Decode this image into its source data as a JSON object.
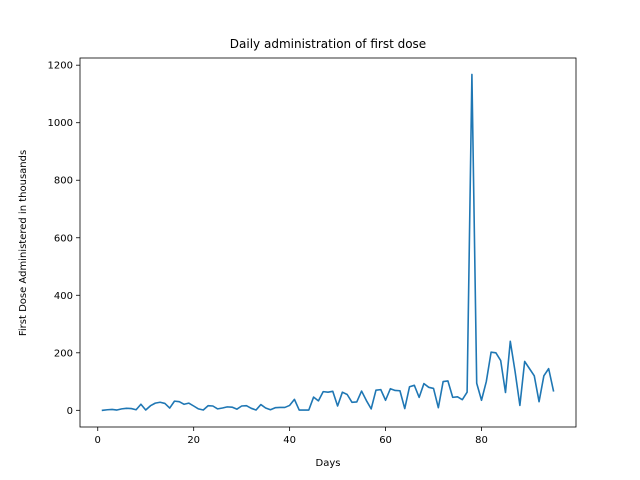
{
  "chart_data": {
    "type": "line",
    "title": "Daily administration of first dose",
    "xlabel": "Days",
    "ylabel": "First Dose Administered in thousands",
    "xlim": [
      -3.7,
      99.7
    ],
    "ylim": [
      -58,
      1225
    ],
    "xticks": [
      0,
      20,
      40,
      60,
      80
    ],
    "yticks": [
      0,
      200,
      400,
      600,
      800,
      1000,
      1200
    ],
    "grid": false,
    "legend": "none",
    "series": [
      {
        "color": "#1f77b4",
        "x": [
          1,
          2,
          3,
          4,
          5,
          6,
          7,
          8,
          9,
          10,
          11,
          12,
          13,
          14,
          15,
          16,
          17,
          18,
          19,
          20,
          21,
          22,
          23,
          24,
          25,
          26,
          27,
          28,
          29,
          30,
          31,
          32,
          33,
          34,
          35,
          36,
          37,
          38,
          39,
          40,
          41,
          42,
          43,
          44,
          45,
          46,
          47,
          48,
          49,
          50,
          51,
          52,
          53,
          54,
          55,
          56,
          57,
          58,
          59,
          60,
          61,
          62,
          63,
          64,
          65,
          66,
          67,
          68,
          69,
          70,
          71,
          72,
          73,
          74,
          75,
          76,
          77,
          78,
          79,
          80,
          81,
          82,
          83,
          84,
          85,
          86,
          87,
          88,
          89,
          90,
          91,
          92,
          93,
          94,
          95
        ],
        "values": [
          0,
          2,
          3,
          1,
          5,
          7,
          6,
          2,
          21,
          1,
          16,
          25,
          28,
          24,
          8,
          32,
          30,
          21,
          25,
          15,
          5,
          1,
          16,
          15,
          5,
          8,
          12,
          11,
          4,
          15,
          16,
          7,
          1,
          20,
          8,
          2,
          9,
          10,
          10,
          17,
          38,
          1,
          1,
          1,
          46,
          33,
          65,
          63,
          66,
          15,
          63,
          55,
          28,
          29,
          67,
          34,
          5,
          70,
          72,
          35,
          75,
          69,
          68,
          6,
          82,
          87,
          45,
          93,
          80,
          76,
          9,
          100,
          102,
          45,
          47,
          37,
          63,
          1168,
          94,
          35,
          100,
          202,
          200,
          173,
          62,
          240,
          135,
          17,
          170,
          145,
          120,
          30,
          120,
          145,
          68
        ]
      }
    ]
  }
}
